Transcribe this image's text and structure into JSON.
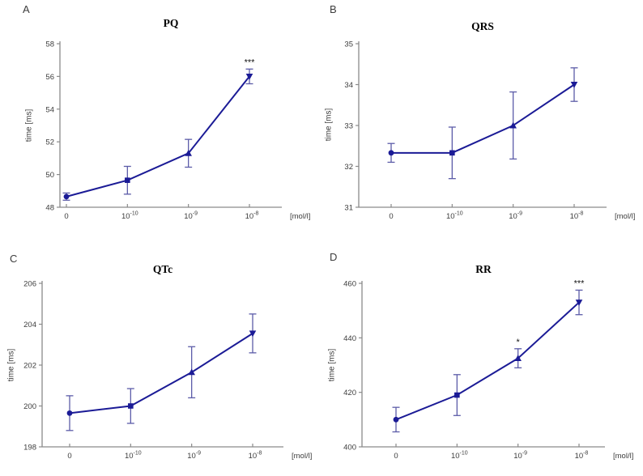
{
  "figure": {
    "background": "#ffffff",
    "panel_letters": [
      "A",
      "B",
      "C",
      "D"
    ]
  },
  "colors": {
    "line": "#1b1b96",
    "error_bar": "#5c5ca8",
    "axis": "#8a8a8a",
    "tick_text": "#3c3c3c",
    "title_text": "#000000",
    "significance_text": "#141414"
  },
  "x_axis": {
    "unit_label": "[mol/l]",
    "ticks": [
      {
        "base": "0",
        "exp": ""
      },
      {
        "base": "10",
        "exp": "-10"
      },
      {
        "base": "10",
        "exp": "-9"
      },
      {
        "base": "10",
        "exp": "-8"
      }
    ]
  },
  "chart_data": [
    {
      "panel_letter": "A",
      "type": "line",
      "title": "PQ",
      "ylabel": "time [ms]",
      "x_unit": "[mol/l]",
      "x_categories": [
        "0",
        "10^-10",
        "10^-9",
        "10^-8"
      ],
      "values": [
        48.65,
        49.65,
        51.3,
        56.0
      ],
      "errors": [
        0.22,
        0.85,
        0.85,
        0.45
      ],
      "significance": [
        "",
        "",
        "",
        "***"
      ],
      "ylim": [
        48,
        58
      ],
      "yticks": [
        48,
        50,
        52,
        54,
        56,
        58
      ],
      "markers": [
        "circle",
        "square",
        "triangle-up",
        "triangle-down"
      ],
      "grid": false,
      "legend": "none"
    },
    {
      "panel_letter": "B",
      "type": "line",
      "title": "QRS",
      "ylabel": "time [ms]",
      "x_unit": "[mol/l]",
      "x_categories": [
        "0",
        "10^-10",
        "10^-9",
        "10^-8"
      ],
      "values": [
        32.33,
        32.33,
        33.0,
        34.0
      ],
      "errors": [
        0.23,
        0.63,
        0.82,
        0.41
      ],
      "significance": [
        "",
        "",
        "",
        ""
      ],
      "ylim": [
        31,
        35
      ],
      "yticks": [
        31,
        32,
        33,
        34,
        35
      ],
      "markers": [
        "circle",
        "square",
        "triangle-up",
        "triangle-down"
      ],
      "grid": false,
      "legend": "none"
    },
    {
      "panel_letter": "C",
      "type": "line",
      "title": "QTc",
      "ylabel": "time [ms]",
      "x_unit": "[mol/l]",
      "x_categories": [
        "0",
        "10^-10",
        "10^-9",
        "10^-8"
      ],
      "values": [
        199.65,
        200.0,
        201.65,
        203.55
      ],
      "errors": [
        0.85,
        0.85,
        1.25,
        0.95
      ],
      "significance": [
        "",
        "",
        "",
        ""
      ],
      "ylim": [
        198,
        206
      ],
      "yticks": [
        198,
        200,
        202,
        204,
        206
      ],
      "markers": [
        "circle",
        "square",
        "triangle-up",
        "triangle-down"
      ],
      "grid": false,
      "legend": "none"
    },
    {
      "panel_letter": "D",
      "type": "line",
      "title": "RR",
      "ylabel": "time [ms]",
      "x_unit": "[mol/l]",
      "x_categories": [
        "0",
        "10^-10",
        "10^-9",
        "10^-8"
      ],
      "values": [
        410,
        419,
        432.5,
        453
      ],
      "errors": [
        4.5,
        7.5,
        3.5,
        4.5
      ],
      "significance": [
        "",
        "",
        "*",
        "***"
      ],
      "ylim": [
        400,
        460
      ],
      "yticks": [
        400,
        420,
        440,
        460
      ],
      "markers": [
        "circle",
        "square",
        "triangle-up",
        "triangle-down"
      ],
      "grid": false,
      "legend": "none"
    }
  ]
}
